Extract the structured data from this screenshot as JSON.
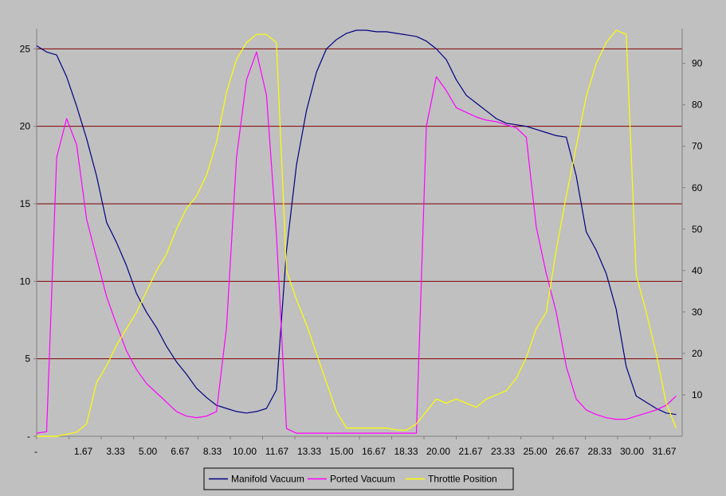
{
  "chart_data": {
    "type": "line",
    "x": [
      0,
      0.5,
      1,
      1.5,
      2,
      2.5,
      3,
      3.5,
      4,
      4.5,
      5,
      5.5,
      6,
      6.5,
      7,
      7.5,
      8,
      8.5,
      9,
      9.5,
      10,
      10.5,
      11,
      11.5,
      12,
      12.5,
      13,
      13.5,
      14,
      14.5,
      15,
      15.5,
      16,
      16.5,
      17,
      17.5,
      18,
      18.5,
      19,
      19.5,
      20,
      20.5,
      21,
      21.5,
      22,
      22.5,
      23,
      23.5,
      24,
      24.5,
      25,
      25.5,
      26,
      26.5,
      27,
      27.5,
      28,
      28.5,
      29,
      29.5,
      30,
      30.5,
      31,
      31.5,
      32
    ],
    "x_tick_labels": [
      "-",
      "1.67",
      "3.33",
      "5.00",
      "6.67",
      "8.33",
      "10.00",
      "11.67",
      "13.33",
      "15.00",
      "16.67",
      "18.33",
      "20.00",
      "21.67",
      "23.33",
      "25.00",
      "26.67",
      "28.33",
      "30.00",
      "31.67"
    ],
    "xlim": [
      0,
      32.3
    ],
    "y_left": {
      "ylim": [
        0,
        26.2
      ],
      "tick_labels": [
        "-",
        "5",
        "10",
        "15",
        "20",
        "25"
      ],
      "ticks": [
        0,
        5,
        10,
        15,
        20,
        25
      ],
      "gridlines": [
        5,
        10,
        15,
        20,
        25
      ]
    },
    "y_right": {
      "ylim": [
        0,
        98
      ],
      "tick_labels": [
        "10",
        "20",
        "30",
        "40",
        "50",
        "60",
        "70",
        "80",
        "90"
      ],
      "ticks": [
        10,
        20,
        30,
        40,
        50,
        60,
        70,
        80,
        90
      ]
    },
    "series": [
      {
        "name": "Manifold Vacuum",
        "axis": "left",
        "color": "#000080",
        "values": [
          25.2,
          24.8,
          24.6,
          23.2,
          21.3,
          19.2,
          16.8,
          13.8,
          12.5,
          11,
          9.2,
          8,
          7,
          5.8,
          4.8,
          4.0,
          3.1,
          2.5,
          2.0,
          1.8,
          1.6,
          1.5,
          1.6,
          1.8,
          3.0,
          12,
          17.5,
          21,
          23.5,
          25,
          25.6,
          26,
          26.2,
          26.2,
          26.1,
          26.1,
          26.0,
          25.9,
          25.8,
          25.5,
          25.0,
          24.3,
          23.0,
          22.0,
          21.5,
          21.0,
          20.5,
          20.2,
          20.1,
          20.0,
          19.8,
          19.6,
          19.4,
          19.3,
          16.8,
          13.2,
          12.0,
          10.5,
          8.2,
          4.5,
          2.6,
          2.2,
          1.8,
          1.5,
          1.4
        ]
      },
      {
        "name": "Ported Vacuum",
        "axis": "left",
        "color": "#ff00ff",
        "values": [
          0.2,
          0.3,
          18.0,
          20.5,
          18.8,
          14.0,
          11.5,
          9.0,
          7.2,
          5.5,
          4.3,
          3.4,
          2.8,
          2.2,
          1.6,
          1.3,
          1.2,
          1.3,
          1.6,
          7.0,
          18.0,
          23.0,
          24.8,
          22.0,
          13.0,
          0.5,
          0.2,
          0.2,
          0.2,
          0.2,
          0.2,
          0.2,
          0.2,
          0.2,
          0.2,
          0.2,
          0.2,
          0.2,
          0.2,
          20.0,
          23.2,
          22.3,
          21.2,
          20.9,
          20.6,
          20.4,
          20.3,
          20.1,
          19.9,
          19.3,
          13.5,
          10.5,
          8.0,
          4.5,
          2.4,
          1.7,
          1.4,
          1.2,
          1.1,
          1.1,
          1.3,
          1.5,
          1.7,
          2.0,
          2.6
        ]
      },
      {
        "name": "Throttle Position",
        "axis": "right",
        "color": "#ffff00",
        "values": [
          0,
          0,
          0,
          0.5,
          1,
          3,
          13,
          17,
          22,
          26,
          30,
          35,
          40,
          44,
          50,
          55,
          58,
          63,
          71,
          83,
          91,
          95,
          97,
          97,
          95,
          40,
          33,
          27,
          20,
          13,
          6,
          2,
          2,
          2,
          2,
          2,
          1.5,
          1.5,
          3,
          6,
          9,
          8,
          9,
          8,
          7,
          9,
          10,
          11,
          14,
          19,
          26,
          30,
          45,
          58,
          70,
          82,
          90,
          95,
          98,
          97,
          39,
          30,
          20,
          8,
          2
        ]
      }
    ],
    "legend": [
      "Manifold Vacuum",
      "Ported Vacuum",
      "Throttle Position"
    ],
    "legend_position": "bottom",
    "grid": true,
    "colors": {
      "background": "#c0c0c0",
      "gridline": "#800000",
      "axis": "#808080"
    }
  }
}
